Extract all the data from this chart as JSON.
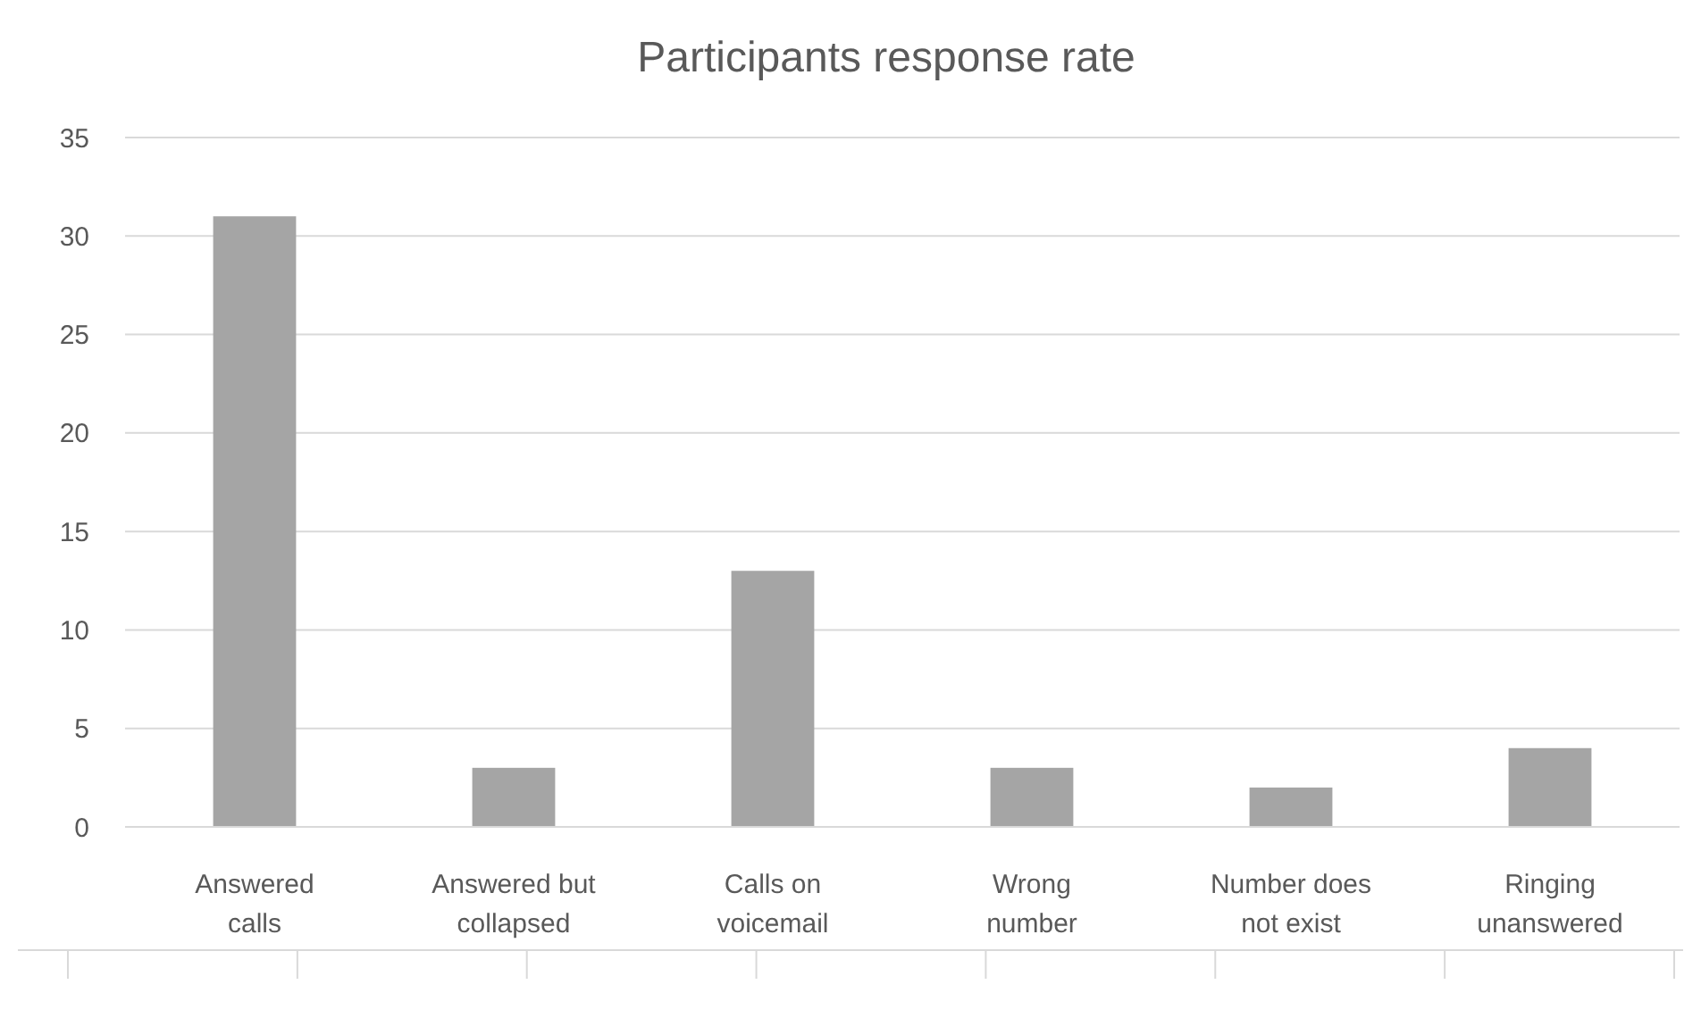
{
  "chart_data": {
    "type": "bar",
    "title": "Participants response rate",
    "categories": [
      "Answered calls",
      "Answered but collapsed",
      "Calls on voicemail",
      "Wrong number",
      "Number does not exist",
      "Ringing unanswered"
    ],
    "values": [
      31,
      3,
      13,
      3,
      2,
      4
    ],
    "color": "#a5a5a5",
    "ylim": [
      0,
      35
    ],
    "yticks": [
      0,
      5,
      10,
      15,
      20,
      25,
      30,
      35
    ],
    "grid": "y"
  }
}
